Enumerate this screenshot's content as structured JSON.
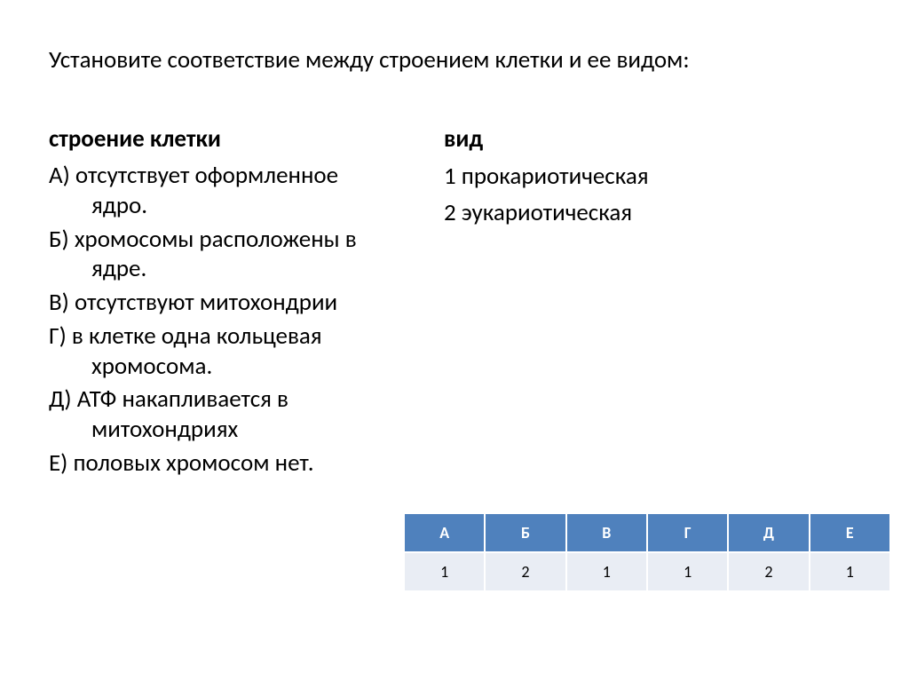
{
  "title": "Установите соответствие между строением клетки и ее видом:",
  "left": {
    "heading": "строение клетки",
    "items": [
      {
        "letter": "А)",
        "text": "отсутствует оформленное",
        "cont": "ядро."
      },
      {
        "letter": "Б)",
        "text": "хромосомы расположены в",
        "cont": "ядре."
      },
      {
        "letter": "В)",
        "text": "отсутствуют митохондрии",
        "cont": ""
      },
      {
        "letter": "Г)",
        "text": "в клетке одна кольцевая",
        "cont": "хромосома."
      },
      {
        "letter": "Д)",
        "text": "АТФ накапливается в",
        "cont": "митохондриях"
      },
      {
        "letter": "Е)",
        "text": "половых хромосом нет.",
        "cont": ""
      }
    ]
  },
  "right": {
    "heading": "вид",
    "items": [
      "1 прокариотическая",
      "2  эукариотическая"
    ]
  },
  "table": {
    "type": "table",
    "header_bg": "#4f81bd",
    "header_fg": "#ffffff",
    "value_bg": "#e9edf4",
    "value_fg": "#000000",
    "border_color": "#ffffff",
    "columns": [
      "А",
      "Б",
      "В",
      "Г",
      "Д",
      "Е"
    ],
    "rows": [
      [
        1,
        2,
        1,
        1,
        2,
        1
      ]
    ],
    "cell_fontsize": 18
  }
}
